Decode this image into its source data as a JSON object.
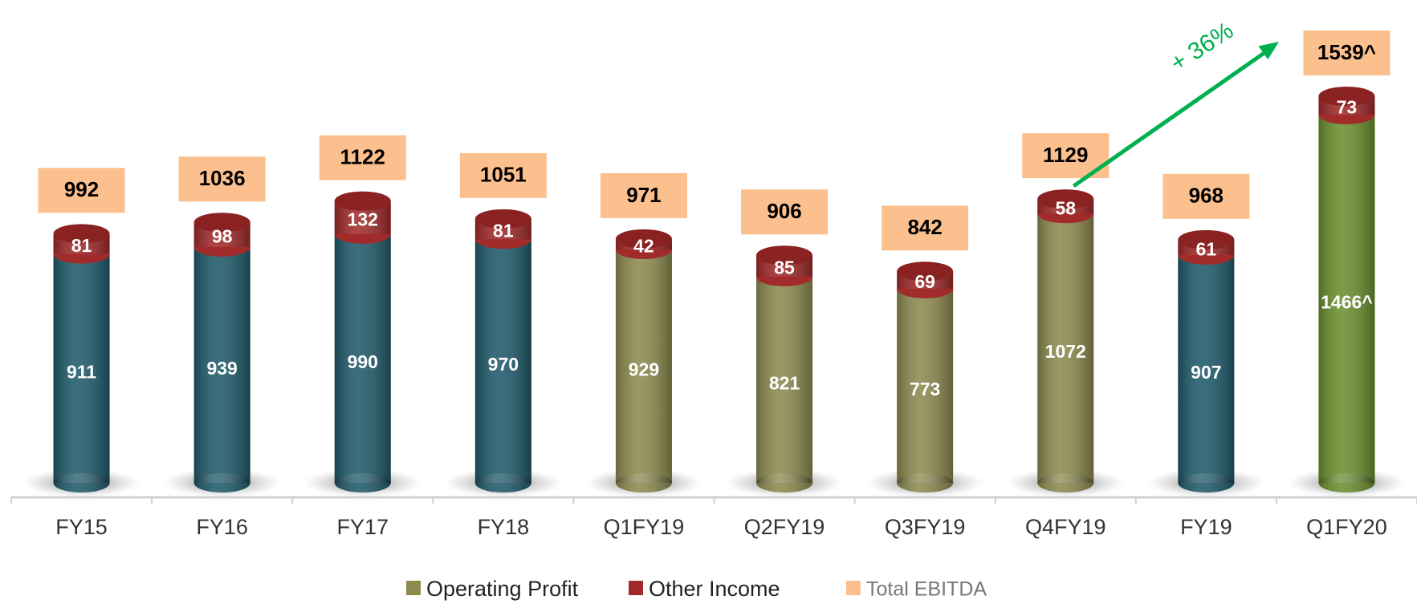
{
  "chart_data": {
    "type": "stacked_cylinder_bar",
    "categories": [
      "FY15",
      "FY16",
      "FY17",
      "FY18",
      "Q1FY19",
      "Q2FY19",
      "Q3FY19",
      "Q4FY19",
      "FY19",
      "Q1FY20"
    ],
    "series": [
      {
        "name": "Operating Profit",
        "color": "#8c8a4e",
        "point_colors": [
          "#1f5a6b",
          "#1f5a6b",
          "#1f5a6b",
          "#1f5a6b",
          "#8c8a4e",
          "#8c8a4e",
          "#8c8a4e",
          "#8c8a4e",
          "#1f5a6b",
          "#6a8f2e"
        ],
        "values": [
          911,
          939,
          990,
          970,
          929,
          821,
          773,
          1072,
          907,
          1466
        ],
        "value_labels": [
          "911",
          "939",
          "990",
          "970",
          "929",
          "821",
          "773",
          "1072",
          "907",
          "1466^"
        ]
      },
      {
        "name": "Other Income",
        "color": "#a12a2a",
        "values": [
          81,
          98,
          132,
          81,
          42,
          85,
          69,
          58,
          61,
          73
        ]
      },
      {
        "name": "Total EBITDA",
        "color": "#fbc08e",
        "values": [
          992,
          1036,
          1122,
          1051,
          971,
          906,
          842,
          1129,
          968,
          1539
        ],
        "value_labels": [
          "992",
          "1036",
          "1122",
          "1051",
          "971",
          "906",
          "842",
          "1129",
          "968",
          "1539^"
        ]
      }
    ],
    "annotations": [
      {
        "text": "+ 36%",
        "color": "#00b050"
      }
    ]
  }
}
